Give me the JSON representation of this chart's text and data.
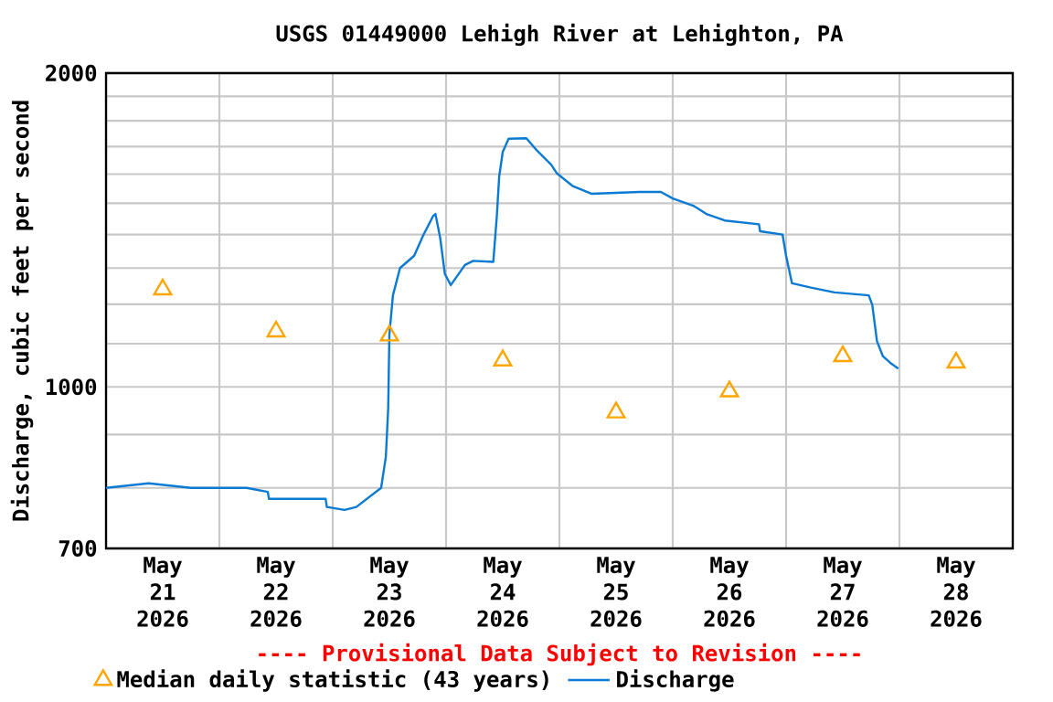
{
  "chart_data": {
    "type": "line",
    "title": "USGS 01449000 Lehigh River at Lehighton, PA",
    "ylabel": "Discharge, cubic feet per second",
    "annotations": [
      "---- Provisional Data Subject to Revision ----"
    ],
    "log": "y",
    "grid": true,
    "legend": "bottom",
    "xlim": [
      "2026-05-21T00:00",
      "2026-05-29T00:00"
    ],
    "xticks": [
      {
        "value": "2026-05-21T12:00",
        "label": "May 21 2026"
      },
      {
        "value": "2026-05-22T12:00",
        "label": "May 22 2026"
      },
      {
        "value": "2026-05-23T12:00",
        "label": "May 23 2026"
      },
      {
        "value": "2026-05-24T12:00",
        "label": "May 24 2026"
      },
      {
        "value": "2026-05-25T12:00",
        "label": "May 25 2026"
      },
      {
        "value": "2026-05-26T12:00",
        "label": "May 26 2026"
      },
      {
        "value": "2026-05-27T12:00",
        "label": "May 27 2026"
      },
      {
        "value": "2026-05-28T12:00",
        "label": "May 28 2026"
      },
      {
        "value": "2026-05-22T00:00",
        "label": null
      },
      {
        "value": "2026-05-23T00:00",
        "label": null
      },
      {
        "value": "2026-05-24T00:00",
        "label": null
      },
      {
        "value": "2026-05-25T00:00",
        "label": null
      },
      {
        "value": "2026-05-26T00:00",
        "label": null
      },
      {
        "value": "2026-05-27T00:00",
        "label": null
      },
      {
        "value": "2026-05-28T00:00",
        "label": null
      }
    ],
    "ylim": [
      700,
      2000
    ],
    "yticks": [
      700,
      {
        "value": 800,
        "label": null
      },
      {
        "value": 900,
        "label": null
      },
      1000,
      {
        "value": 1100,
        "label": null
      },
      {
        "value": 1200,
        "label": null
      },
      {
        "value": 1300,
        "label": null
      },
      {
        "value": 1400,
        "label": null
      },
      {
        "value": 1500,
        "label": null
      },
      {
        "value": 1600,
        "label": null
      },
      {
        "value": 1700,
        "label": null
      },
      {
        "value": 1800,
        "label": null
      },
      {
        "value": 1900,
        "label": null
      },
      2000
    ],
    "series": [
      {
        "name": "Median daily statistic (43 years)",
        "type": "scatter",
        "marker": "triangle",
        "color": "#ffa500",
        "x": [
          "2026-05-21T12:00",
          "2026-05-22T12:00",
          "2026-05-23T12:00",
          "2026-05-24T12:00",
          "2026-05-25T12:00",
          "2026-05-26T12:00",
          "2026-05-27T12:00",
          "2026-05-28T12:00"
        ],
        "values": [
          1240,
          1130,
          1120,
          1060,
          945,
          990,
          1070,
          1055
        ]
      },
      {
        "name": "Discharge",
        "type": "line",
        "color": "#0a7ad2",
        "x": [
          "2026-05-21T00:00",
          "2026-05-21T09:00",
          "2026-05-21T18:00",
          "2026-05-22T05:45",
          "2026-05-22T10:15",
          "2026-05-22T10:30",
          "2026-05-22T22:30",
          "2026-05-22T22:45",
          "2026-05-23T02:30",
          "2026-05-23T05:00",
          "2026-05-23T10:15",
          "2026-05-23T11:15",
          "2026-05-23T11:45",
          "2026-05-23T12:00",
          "2026-05-23T12:45",
          "2026-05-23T14:15",
          "2026-05-23T17:15",
          "2026-05-23T19:15",
          "2026-05-23T21:15",
          "2026-05-23T21:45",
          "2026-05-23T22:45",
          "2026-05-23T23:45",
          "2026-05-24T01:00",
          "2026-05-24T04:00",
          "2026-05-24T05:45",
          "2026-05-24T10:00",
          "2026-05-24T10:45",
          "2026-05-24T11:15",
          "2026-05-24T12:00",
          "2026-05-24T13:15",
          "2026-05-24T17:00",
          "2026-05-24T19:00",
          "2026-05-24T22:15",
          "2026-05-24T23:30",
          "2026-05-25T02:45",
          "2026-05-25T06:45",
          "2026-05-25T17:00",
          "2026-05-25T21:30",
          "2026-05-26T00:00",
          "2026-05-26T04:30",
          "2026-05-26T07:15",
          "2026-05-26T11:00",
          "2026-05-26T18:15",
          "2026-05-26T18:30",
          "2026-05-26T23:15",
          "2026-05-27T00:00",
          "2026-05-27T01:15",
          "2026-05-27T05:15",
          "2026-05-27T10:15",
          "2026-05-27T17:30",
          "2026-05-27T18:15",
          "2026-05-27T19:15",
          "2026-05-27T20:30",
          "2026-05-27T22:00",
          "2026-05-27T23:45"
        ],
        "values": [
          800,
          808,
          800,
          800,
          793,
          781,
          781,
          767,
          762,
          767,
          800,
          857,
          954,
          1122,
          1224,
          1300,
          1336,
          1400,
          1458,
          1465,
          1390,
          1283,
          1252,
          1309,
          1321,
          1318,
          1458,
          1591,
          1680,
          1730,
          1732,
          1690,
          1634,
          1602,
          1559,
          1532,
          1538,
          1538,
          1516,
          1491,
          1464,
          1444,
          1432,
          1410,
          1400,
          1336,
          1257,
          1245,
          1232,
          1224,
          1199,
          1106,
          1070,
          1055,
          1041
        ]
      }
    ]
  }
}
